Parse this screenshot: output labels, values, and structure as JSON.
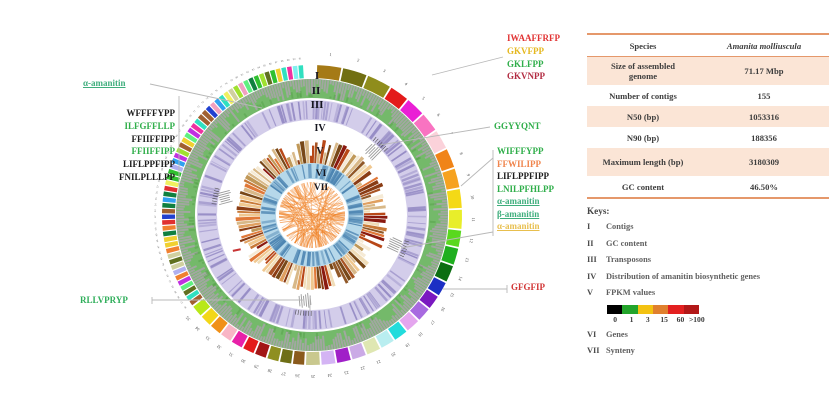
{
  "peptides": {
    "top_left": {
      "text": "α-amanitin",
      "color": "#3fae7d",
      "underline": true
    },
    "left_stack": [
      {
        "text": "WFFFFYPP",
        "color": "#1c1c1c"
      },
      {
        "text": "ILFGFFLLP",
        "color": "#2fae4a"
      },
      {
        "text": "FFIIFFIPP",
        "color": "#1c1c1c"
      },
      {
        "text": "FFIIFFIPP",
        "color": "#2fae4a"
      },
      {
        "text": "LIFLPPFIPP",
        "color": "#1c1c1c"
      },
      {
        "text": "FNILPLLLPP",
        "color": "#1c1c1c"
      }
    ],
    "bottom_left": {
      "text": "RLLVPRYP",
      "color": "#2fae5a"
    },
    "top_right_stack": [
      {
        "text": "IWAAFFRFP",
        "color": "#e13333"
      },
      {
        "text": "GKVFPP",
        "color": "#e5b81f"
      },
      {
        "text": "GKLFPP",
        "color": "#2fae4a"
      },
      {
        "text": "GKVNPP",
        "color": "#b22c42"
      }
    ],
    "right_single": {
      "text": "GGYYQNT",
      "color": "#2fae4a"
    },
    "right_stack": [
      {
        "text": "WIFFFYPP",
        "color": "#2fae4a"
      },
      {
        "text": "FFWILIPP",
        "color": "#f0854d"
      },
      {
        "text": "LIFLPPFIPP",
        "color": "#1c1c1c"
      },
      {
        "text": "LNILPFHLPP",
        "color": "#2fae4a"
      },
      {
        "text": "α-amanitin",
        "color": "#3fae7d",
        "underline": true
      },
      {
        "text": "β-amanitin",
        "color": "#3fae7d",
        "underline": true
      },
      {
        "text": "α-amanitin",
        "color": "#e8bf4e",
        "underline": true
      }
    ],
    "right_bottom": {
      "text": "GFGFIP",
      "color": "#d13434"
    }
  },
  "table": {
    "header": {
      "label": "Species",
      "value": "Amanita molliuscula"
    },
    "rows": [
      {
        "label": "Size of assembled genome",
        "value": "71.17 Mbp"
      },
      {
        "label": "Number of contigs",
        "value": "155"
      },
      {
        "label": "N50 (bp)",
        "value": "1053316"
      },
      {
        "label": "N90 (bp)",
        "value": "188356"
      },
      {
        "label": "Maximum length (bp)",
        "value": "3180309"
      },
      {
        "label": "GC content",
        "value": "46.50%"
      }
    ]
  },
  "keys": {
    "title": "Keys:",
    "items_before_scale": [
      {
        "numeral": "I",
        "label": "Contigs"
      },
      {
        "numeral": "II",
        "label": "GC content"
      },
      {
        "numeral": "III",
        "label": "Transposons"
      },
      {
        "numeral": "IV",
        "label": "Distribution of amanitin biosynthetic genes"
      },
      {
        "numeral": "V",
        "label": "FPKM values"
      }
    ],
    "colorbar": {
      "colors": [
        "#000000",
        "#23a42b",
        "#f3c212",
        "#e0802e",
        "#e32020",
        "#b21818"
      ],
      "labels": [
        "0",
        "1",
        "3",
        "15",
        "60",
        ">100"
      ]
    },
    "items_after_scale": [
      {
        "numeral": "VI",
        "label": "Genes"
      },
      {
        "numeral": "VII",
        "label": "Synteny"
      }
    ]
  },
  "circos": {
    "numerals": [
      "I",
      "II",
      "III",
      "IV",
      "V",
      "VI",
      "VII"
    ],
    "numbered_segments": 35,
    "segment_colors": [
      "#a57a16",
      "#716f12",
      "#8f8d1c",
      "#e31a1a",
      "#ea1fd5",
      "#f973c1",
      "#fbd2da",
      "#f08418",
      "#f6a21f",
      "#f4d916",
      "#e8ee2a",
      "#59d81e",
      "#1faf1f",
      "#0c6e12",
      "#1c2fc4",
      "#7a18c0",
      "#a86ae0",
      "#e4a6ee",
      "#22dcdc",
      "#b9eef0",
      "#dfe7b2",
      "#cbaae6",
      "#a020c8",
      "#d4b4f4",
      "#c9c88e",
      "#8a5a1c",
      "#6f6f16",
      "#8f8f20",
      "#a31616",
      "#e31a1a",
      "#e821a8",
      "#f9b6c6",
      "#f09018",
      "#f2d718",
      "#b8e818"
    ],
    "small_segment_palette": [
      "#e03030",
      "#f08030",
      "#f0d030",
      "#a0e030",
      "#30c030",
      "#108040",
      "#30e0c0",
      "#30a0f0",
      "#2040d0",
      "#8030d0",
      "#c030e0",
      "#f030a0",
      "#f0a0c0",
      "#a06030",
      "#607020",
      "#d0d0a0",
      "#80f0f0",
      "#b0b0f0",
      "#f0f060",
      "#60f080",
      "#004080",
      "#804000"
    ],
    "ring_colors": {
      "gc_base": "#74b96a",
      "gc_noise": "#a6a6a6",
      "transposon_base": "#d3cdea",
      "transposon_bar": "#978dc6",
      "gene_base": "#b6d8ea",
      "gene_bar": "#4d85b2",
      "synteny_chord": "#ef8228",
      "fpkm_palette": [
        "#c87a38",
        "#a85424",
        "#e0a060",
        "#8a3c14",
        "#d8b888",
        "#f0ddb8",
        "#b84818",
        "#e07838",
        "#f0c890",
        "#905828",
        "#8a1a10",
        "#c09858",
        "#f5ead5",
        "#784818"
      ]
    },
    "annotation_color": "#9a9a9a",
    "red_mark_color": "#c83434"
  },
  "chart_data": {
    "type": "circos",
    "rings": [
      {
        "numeral": "I",
        "label": "Contigs"
      },
      {
        "numeral": "II",
        "label": "GC content"
      },
      {
        "numeral": "III",
        "label": "Transposons"
      },
      {
        "numeral": "IV",
        "label": "Distribution of amanitin biosynthetic genes"
      },
      {
        "numeral": "V",
        "label": "FPKM values"
      },
      {
        "numeral": "VI",
        "label": "Genes"
      },
      {
        "numeral": "VII",
        "label": "Synteny"
      }
    ],
    "fpkm_color_scale": {
      "colors": [
        "#000000",
        "#23a42b",
        "#f3c212",
        "#e0802e",
        "#e32020",
        "#b21818"
      ],
      "labels": [
        "0",
        "1",
        "3",
        "15",
        "60",
        ">100"
      ]
    },
    "assembly_table": {
      "species": "Amanita molliuscula",
      "size_of_assembled_genome": "71.17 Mbp",
      "number_of_contigs": "155",
      "n50_bp": "1053316",
      "n90_bp": "188356",
      "maximum_length_bp": "3180309",
      "gc_content": "46.50%"
    },
    "peptide_annotations": {
      "left": [
        "α-amanitin",
        "WFFFFYPP",
        "ILFGFFLLP",
        "FFIIFFIPP",
        "FFIIFFIPP",
        "LIFLPPFIPP",
        "FNILPLLLPP",
        "RLLVPRYP"
      ],
      "right": [
        "IWAAFFRFP",
        "GKVFPP",
        "GKLFPP",
        "GKVNPP",
        "GGYYQNT",
        "WIFFFYPP",
        "FFWILIPP",
        "LIFLPPFIPP",
        "LNILPFHLPP",
        "α-amanitin",
        "β-amanitin",
        "α-amanitin",
        "GFGFIP"
      ]
    }
  }
}
